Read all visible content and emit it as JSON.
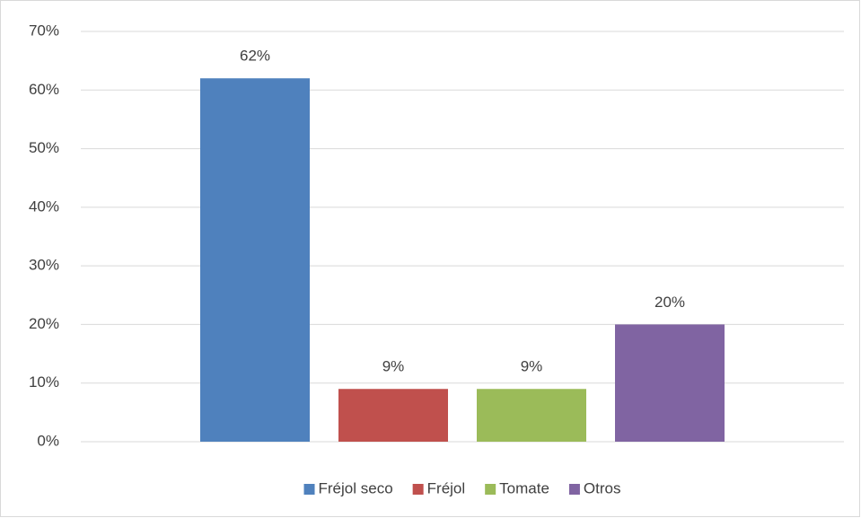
{
  "chart_data": {
    "type": "bar",
    "categories": [
      null
    ],
    "series": [
      {
        "name": "Fréjol seco",
        "color": "#4f81bd",
        "values": [
          62
        ],
        "value_labels": [
          "62%"
        ]
      },
      {
        "name": "Fréjol",
        "color": "#c0504d",
        "values": [
          9
        ],
        "value_labels": [
          "9%"
        ]
      },
      {
        "name": "Tomate",
        "color": "#9bbb59",
        "values": [
          9
        ],
        "value_labels": [
          "9%"
        ]
      },
      {
        "name": "Otros",
        "color": "#8064a2",
        "values": [
          20
        ],
        "value_labels": [
          "20%"
        ]
      }
    ],
    "ylim": [
      0,
      70
    ],
    "yticks": [
      {
        "value": 0,
        "label": "0%"
      },
      {
        "value": 10,
        "label": "10%"
      },
      {
        "value": 20,
        "label": "20%"
      },
      {
        "value": 30,
        "label": "30%"
      },
      {
        "value": 40,
        "label": "40%"
      },
      {
        "value": 50,
        "label": "50%"
      },
      {
        "value": 60,
        "label": "60%"
      },
      {
        "value": 70,
        "label": "70%"
      }
    ],
    "grid": true,
    "legend": "bottom"
  }
}
